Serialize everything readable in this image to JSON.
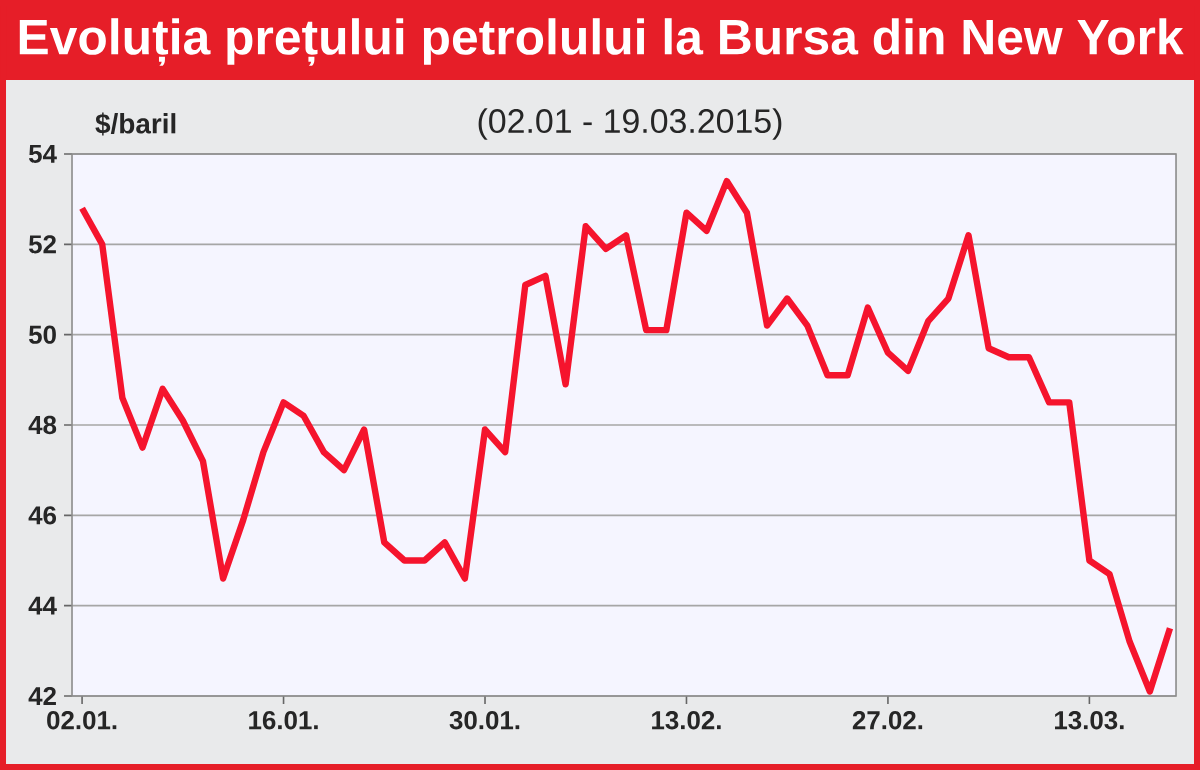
{
  "chart_data": {
    "type": "line",
    "title": "Evoluția prețului petrolului la Bursa din New York",
    "subtitle": "(02.01 -  19.03.2015)",
    "ylabel": "$/baril",
    "categories": [
      "02.01.",
      null,
      null,
      null,
      null,
      null,
      null,
      null,
      null,
      null,
      "16.01.",
      null,
      null,
      null,
      null,
      null,
      null,
      null,
      null,
      null,
      "30.01.",
      null,
      null,
      null,
      null,
      null,
      null,
      null,
      null,
      null,
      "13.02.",
      null,
      null,
      null,
      null,
      null,
      null,
      null,
      null,
      null,
      "27.02.",
      null,
      null,
      null,
      null,
      null,
      null,
      null,
      null,
      null,
      "13.03.",
      null,
      null,
      null,
      null
    ],
    "values": [
      52.8,
      52.0,
      48.6,
      47.5,
      48.8,
      48.1,
      47.2,
      44.6,
      45.9,
      47.4,
      48.5,
      48.2,
      47.4,
      47.0,
      47.9,
      45.4,
      45.0,
      45.0,
      45.4,
      44.6,
      47.9,
      47.4,
      51.1,
      51.3,
      48.9,
      52.4,
      51.9,
      52.2,
      50.1,
      50.1,
      52.7,
      52.3,
      53.4,
      52.7,
      50.2,
      50.8,
      50.2,
      49.1,
      49.1,
      50.6,
      49.6,
      49.2,
      50.3,
      50.8,
      52.2,
      49.7,
      49.5,
      49.5,
      48.5,
      48.5,
      45.0,
      44.7,
      43.2,
      42.1,
      43.5
    ],
    "color": "#f5142d",
    "ylim": [
      42,
      54
    ],
    "yticks": [
      42,
      44,
      46,
      48,
      50,
      52,
      54
    ],
    "grid": "y"
  }
}
